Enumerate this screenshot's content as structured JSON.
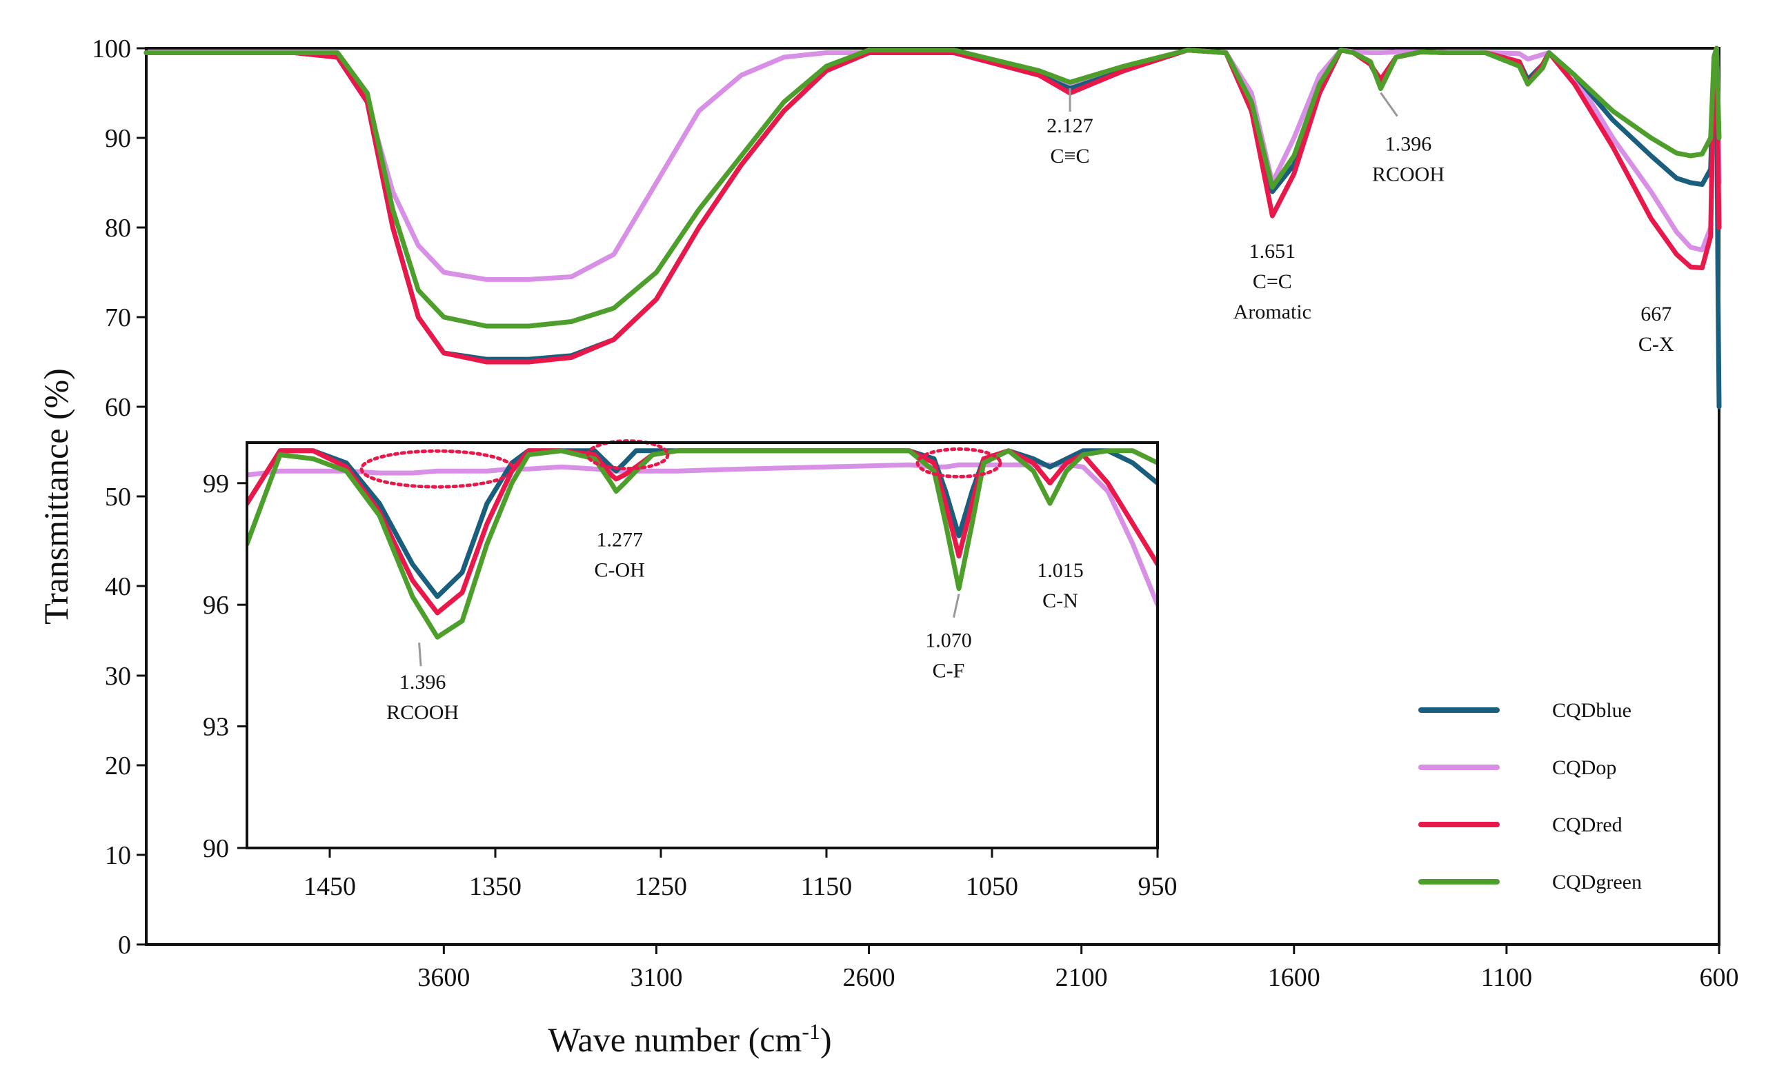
{
  "chart_data": {
    "type": "line",
    "xlabel_main": "Wave number (cm",
    "xlabel_sup": "-1",
    "xlabel_tail": ")",
    "ylabel": "Transmittance (%)",
    "xlim": [
      4300,
      600
    ],
    "ylim": [
      0,
      100
    ],
    "x_ticks": [
      3600,
      3100,
      2600,
      2100,
      1600,
      1100,
      600
    ],
    "y_ticks": [
      0,
      10,
      20,
      30,
      40,
      50,
      60,
      70,
      80,
      90,
      100
    ],
    "colors": {
      "CQDblue": "#1a5e7e",
      "CQDop": "#d88fe6",
      "CQDred": "#e8194a",
      "CQDgreen": "#4e9e2c"
    },
    "series": [
      {
        "name": "CQDblue",
        "color": "#1a5e7e",
        "x": [
          4300,
          3950,
          3850,
          3780,
          3720,
          3660,
          3600,
          3500,
          3400,
          3300,
          3200,
          3100,
          3000,
          2900,
          2800,
          2700,
          2600,
          2400,
          2200,
          2127,
          2000,
          1850,
          1760,
          1700,
          1651,
          1600,
          1540,
          1490,
          1460,
          1420,
          1396,
          1360,
          1300,
          1240,
          1150,
          1070,
          1050,
          1015,
          1000,
          940,
          850,
          760,
          700,
          667,
          640,
          620,
          612,
          606,
          603,
          600
        ],
        "values": [
          99.5,
          99.5,
          99,
          94,
          80,
          70,
          66,
          65.3,
          65.3,
          65.7,
          67.5,
          72,
          80,
          87,
          93,
          97.5,
          99.5,
          99.5,
          97,
          95.5,
          97.5,
          99.8,
          99.5,
          93,
          84,
          87,
          95,
          99.8,
          99.5,
          98.2,
          96,
          99,
          99.6,
          99.5,
          99.5,
          98.5,
          96.5,
          98.2,
          99.5,
          97,
          92,
          88,
          85.5,
          85,
          84.8,
          86.5,
          99,
          100,
          75,
          60
        ]
      },
      {
        "name": "CQDop",
        "color": "#d88fe6",
        "x": [
          4300,
          3950,
          3850,
          3780,
          3720,
          3660,
          3600,
          3500,
          3400,
          3300,
          3200,
          3100,
          3000,
          2900,
          2800,
          2700,
          2600,
          2400,
          2200,
          2127,
          2000,
          1850,
          1760,
          1700,
          1651,
          1600,
          1540,
          1490,
          1460,
          1420,
          1396,
          1360,
          1300,
          1240,
          1150,
          1070,
          1050,
          1015,
          1000,
          940,
          850,
          760,
          700,
          667,
          640,
          620,
          612,
          606,
          603,
          600
        ],
        "values": [
          99.5,
          99.5,
          99,
          94,
          84,
          78,
          75,
          74.2,
          74.2,
          74.5,
          77,
          85,
          93,
          97,
          99,
          99.5,
          99.5,
          99.5,
          97,
          96,
          97.8,
          99.8,
          99.5,
          95,
          85,
          90,
          97,
          99.8,
          99.6,
          99.5,
          99.5,
          99.6,
          99.6,
          99.5,
          99.5,
          99.4,
          98.8,
          99.3,
          99.5,
          97,
          90,
          84,
          79.5,
          77.8,
          77.5,
          80,
          99,
          100,
          95,
          85
        ]
      },
      {
        "name": "CQDred",
        "color": "#e8194a",
        "x": [
          4300,
          3950,
          3850,
          3780,
          3720,
          3660,
          3600,
          3500,
          3400,
          3300,
          3200,
          3100,
          3000,
          2900,
          2800,
          2700,
          2600,
          2400,
          2200,
          2127,
          2000,
          1850,
          1760,
          1700,
          1651,
          1600,
          1540,
          1490,
          1460,
          1420,
          1396,
          1360,
          1300,
          1240,
          1150,
          1070,
          1050,
          1015,
          1000,
          940,
          850,
          760,
          700,
          667,
          640,
          620,
          612,
          606,
          603,
          600
        ],
        "values": [
          99.5,
          99.5,
          99,
          94,
          80,
          70,
          66,
          65,
          65,
          65.5,
          67.5,
          72,
          80,
          87,
          93,
          97.5,
          99.5,
          99.5,
          97,
          95,
          97.5,
          99.8,
          99.5,
          93,
          81.3,
          86,
          95,
          99.8,
          99.5,
          98.2,
          96.5,
          99,
          99.6,
          99.5,
          99.5,
          98.5,
          96,
          98.2,
          99.5,
          96,
          89,
          81,
          77,
          75.6,
          75.5,
          79,
          98,
          100,
          90,
          80
        ]
      },
      {
        "name": "CQDgreen",
        "color": "#4e9e2c",
        "x": [
          4300,
          3950,
          3850,
          3780,
          3720,
          3660,
          3600,
          3500,
          3400,
          3300,
          3200,
          3100,
          3000,
          2900,
          2800,
          2700,
          2600,
          2400,
          2200,
          2127,
          2000,
          1850,
          1760,
          1700,
          1651,
          1600,
          1540,
          1490,
          1460,
          1420,
          1396,
          1360,
          1300,
          1240,
          1150,
          1070,
          1050,
          1015,
          1000,
          940,
          850,
          760,
          700,
          667,
          640,
          620,
          612,
          606,
          603,
          600
        ],
        "values": [
          99.5,
          99.5,
          99.5,
          95,
          82,
          73,
          70,
          69,
          69,
          69.5,
          71,
          75,
          82,
          88,
          94,
          98,
          99.8,
          99.8,
          97.5,
          96.2,
          98,
          99.8,
          99.5,
          94,
          84.5,
          88,
          96,
          99.8,
          99.5,
          98.5,
          95.5,
          99,
          99.6,
          99.5,
          99.5,
          98,
          96,
          97.8,
          99.5,
          97,
          93,
          90,
          88.3,
          88,
          88.2,
          90,
          99,
          100,
          95,
          90
        ]
      }
    ],
    "annotations": [
      {
        "lines": [
          "2.127",
          "C≡C"
        ],
        "target_x": 2127,
        "target_y": 96
      },
      {
        "lines": [
          "1.651",
          "C=C",
          "Aromatic"
        ],
        "target_x": 1651,
        "target_y": 82
      },
      {
        "lines": [
          "1.396",
          "RCOOH"
        ],
        "target_x": 1396,
        "target_y": 95.5
      },
      {
        "lines": [
          "667",
          "C-X"
        ],
        "target_x": 667,
        "target_y": 75
      }
    ],
    "legend": {
      "placement": "bottom-right",
      "entries": [
        "CQDblue",
        "CQDop",
        "CQDred",
        "CQDgreen"
      ]
    },
    "inset": {
      "type": "line",
      "xlim": [
        1500,
        950
      ],
      "ylim": [
        90,
        100
      ],
      "x_ticks": [
        1450,
        1350,
        1250,
        1150,
        1050,
        950
      ],
      "y_ticks": [
        90,
        93,
        96,
        99
      ],
      "series": [
        {
          "name": "CQDblue",
          "x": [
            1500,
            1480,
            1460,
            1440,
            1420,
            1400,
            1385,
            1370,
            1355,
            1340,
            1330,
            1310,
            1290,
            1280,
            1277,
            1272,
            1265,
            1255,
            1240,
            1200,
            1150,
            1100,
            1085,
            1078,
            1070,
            1062,
            1055,
            1040,
            1025,
            1015,
            1005,
            995,
            980,
            965,
            950
          ],
          "values": [
            98.5,
            99.8,
            99.8,
            99.5,
            98.5,
            97,
            96.2,
            96.8,
            98.5,
            99.5,
            99.8,
            99.8,
            99.8,
            99.4,
            99.3,
            99.5,
            99.8,
            99.8,
            99.8,
            99.8,
            99.8,
            99.8,
            99.6,
            98.8,
            97.7,
            98.8,
            99.6,
            99.8,
            99.6,
            99.4,
            99.6,
            99.8,
            99.8,
            99.5,
            99
          ]
        },
        {
          "name": "CQDop",
          "x": [
            1500,
            1480,
            1460,
            1440,
            1420,
            1400,
            1385,
            1370,
            1355,
            1340,
            1330,
            1310,
            1290,
            1280,
            1277,
            1272,
            1265,
            1255,
            1240,
            1200,
            1150,
            1100,
            1085,
            1078,
            1070,
            1062,
            1055,
            1040,
            1025,
            1015,
            1005,
            995,
            980,
            965,
            950
          ],
          "values": [
            99.2,
            99.3,
            99.3,
            99.3,
            99.25,
            99.25,
            99.3,
            99.3,
            99.3,
            99.35,
            99.35,
            99.4,
            99.35,
            99.3,
            99.3,
            99.3,
            99.3,
            99.3,
            99.3,
            99.35,
            99.4,
            99.45,
            99.4,
            99.4,
            99.45,
            99.45,
            99.45,
            99.45,
            99.45,
            99.45,
            99.45,
            99.4,
            98.8,
            97.5,
            96
          ]
        },
        {
          "name": "CQDred",
          "x": [
            1500,
            1480,
            1460,
            1440,
            1420,
            1400,
            1385,
            1370,
            1355,
            1340,
            1330,
            1310,
            1290,
            1280,
            1277,
            1272,
            1265,
            1255,
            1240,
            1200,
            1150,
            1100,
            1085,
            1078,
            1070,
            1062,
            1055,
            1040,
            1025,
            1015,
            1005,
            995,
            980,
            965,
            950
          ],
          "values": [
            98.5,
            99.8,
            99.8,
            99.4,
            98.3,
            96.6,
            95.8,
            96.3,
            98,
            99.3,
            99.8,
            99.8,
            99.7,
            99.2,
            99.1,
            99.2,
            99.4,
            99.7,
            99.8,
            99.8,
            99.8,
            99.8,
            99.5,
            98.5,
            97.2,
            98.5,
            99.6,
            99.8,
            99.5,
            99,
            99.5,
            99.7,
            99,
            98,
            97
          ]
        },
        {
          "name": "CQDgreen",
          "x": [
            1500,
            1480,
            1460,
            1440,
            1420,
            1400,
            1385,
            1370,
            1355,
            1340,
            1330,
            1310,
            1290,
            1280,
            1277,
            1272,
            1265,
            1255,
            1240,
            1200,
            1150,
            1100,
            1085,
            1078,
            1070,
            1062,
            1055,
            1040,
            1025,
            1015,
            1005,
            995,
            980,
            965,
            950
          ],
          "values": [
            97.5,
            99.7,
            99.6,
            99.3,
            98.2,
            96.2,
            95.2,
            95.6,
            97.5,
            99,
            99.7,
            99.8,
            99.6,
            99,
            98.8,
            99,
            99.3,
            99.7,
            99.8,
            99.8,
            99.8,
            99.8,
            99.3,
            98,
            96.4,
            98,
            99.5,
            99.8,
            99.3,
            98.5,
            99.3,
            99.7,
            99.8,
            99.8,
            99.5
          ]
        }
      ],
      "annotations": [
        {
          "lines": [
            "1.396",
            "RCOOH"
          ],
          "target_x": 1396,
          "target_y": 95.2
        },
        {
          "lines": [
            "1.277",
            "C-OH"
          ],
          "target_x": 1277,
          "target_y": 98.8
        },
        {
          "lines": [
            "1.070",
            "C-F"
          ],
          "target_x": 1070,
          "target_y": 96.4
        },
        {
          "lines": [
            "1.015",
            "C-N"
          ],
          "target_x": 1015,
          "target_y": 98.3
        }
      ],
      "highlights": [
        {
          "center_x": 1385,
          "center_y": 99.35
        },
        {
          "center_x": 1270,
          "center_y": 99.7
        },
        {
          "center_x": 1070,
          "center_y": 99.5
        }
      ]
    }
  }
}
